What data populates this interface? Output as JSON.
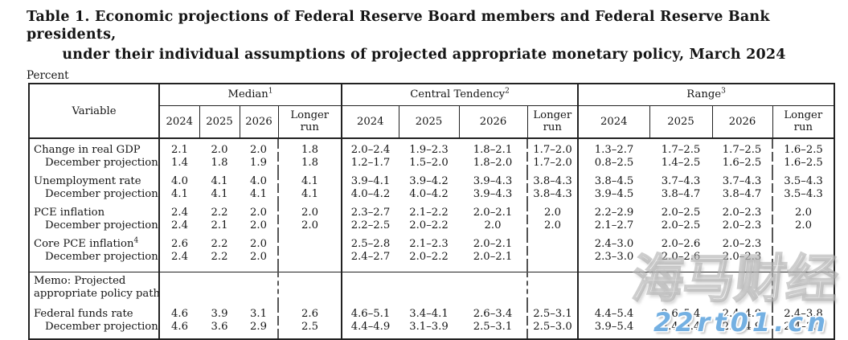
{
  "title": {
    "line1": "Table 1. Economic projections of Federal Reserve Board members and Federal Reserve Bank presidents,",
    "line2": "under their individual assumptions of projected appropriate monetary policy, March 2024"
  },
  "percent_label": "Percent",
  "table": {
    "variable_header": "Variable",
    "groups": [
      {
        "label": "Median",
        "sup": "1"
      },
      {
        "label": "Central Tendency",
        "sup": "2"
      },
      {
        "label": "Range",
        "sup": "3"
      }
    ],
    "year_headers": [
      "2024",
      "2025",
      "2026",
      "Longer run"
    ],
    "row_groups": [
      {
        "rows": [
          {
            "label": "Change in real GDP",
            "sup": "",
            "indent": false,
            "median": [
              "2.1",
              "2.0",
              "2.0",
              "1.8"
            ],
            "central_tendency": [
              "2.0–2.4",
              "1.9–2.3",
              "1.8–2.1",
              "1.7–2.0"
            ],
            "range": [
              "1.3–2.7",
              "1.7–2.5",
              "1.7–2.5",
              "1.6–2.5"
            ]
          },
          {
            "label": "December projection",
            "sup": "",
            "indent": true,
            "median": [
              "1.4",
              "1.8",
              "1.9",
              "1.8"
            ],
            "central_tendency": [
              "1.2–1.7",
              "1.5–2.0",
              "1.8–2.0",
              "1.7–2.0"
            ],
            "range": [
              "0.8–2.5",
              "1.4–2.5",
              "1.6–2.5",
              "1.6–2.5"
            ]
          }
        ]
      },
      {
        "rows": [
          {
            "label": "Unemployment rate",
            "sup": "",
            "indent": false,
            "median": [
              "4.0",
              "4.1",
              "4.0",
              "4.1"
            ],
            "central_tendency": [
              "3.9–4.1",
              "3.9–4.2",
              "3.9–4.3",
              "3.8–4.3"
            ],
            "range": [
              "3.8–4.5",
              "3.7–4.3",
              "3.7–4.3",
              "3.5–4.3"
            ]
          },
          {
            "label": "December projection",
            "sup": "",
            "indent": true,
            "median": [
              "4.1",
              "4.1",
              "4.1",
              "4.1"
            ],
            "central_tendency": [
              "4.0–4.2",
              "4.0–4.2",
              "3.9–4.3",
              "3.8–4.3"
            ],
            "range": [
              "3.9–4.5",
              "3.8–4.7",
              "3.8–4.7",
              "3.5–4.3"
            ]
          }
        ]
      },
      {
        "rows": [
          {
            "label": "PCE inflation",
            "sup": "",
            "indent": false,
            "median": [
              "2.4",
              "2.2",
              "2.0",
              "2.0"
            ],
            "central_tendency": [
              "2.3–2.7",
              "2.1–2.2",
              "2.0–2.1",
              "2.0"
            ],
            "range": [
              "2.2–2.9",
              "2.0–2.5",
              "2.0–2.3",
              "2.0"
            ]
          },
          {
            "label": "December projection",
            "sup": "",
            "indent": true,
            "median": [
              "2.4",
              "2.1",
              "2.0",
              "2.0"
            ],
            "central_tendency": [
              "2.2–2.5",
              "2.0–2.2",
              "2.0",
              "2.0"
            ],
            "range": [
              "2.1–2.7",
              "2.0–2.5",
              "2.0–2.3",
              "2.0"
            ]
          }
        ]
      },
      {
        "rows": [
          {
            "label": "Core PCE inflation",
            "sup": "4",
            "indent": false,
            "median": [
              "2.6",
              "2.2",
              "2.0",
              ""
            ],
            "central_tendency": [
              "2.5–2.8",
              "2.1–2.3",
              "2.0–2.1",
              ""
            ],
            "range": [
              "2.4–3.0",
              "2.0–2.6",
              "2.0–2.3",
              ""
            ]
          },
          {
            "label": "December projection",
            "sup": "",
            "indent": true,
            "median": [
              "2.4",
              "2.2",
              "2.0",
              ""
            ],
            "central_tendency": [
              "2.4–2.7",
              "2.0–2.2",
              "2.0–2.1",
              ""
            ],
            "range": [
              "2.3–3.0",
              "2.0–2.6",
              "2.0–2.3",
              ""
            ]
          }
        ]
      },
      {
        "memo_lines": [
          "Memo: Projected",
          "appropriate policy path"
        ]
      },
      {
        "rows": [
          {
            "label": "Federal funds rate",
            "sup": "",
            "indent": false,
            "median": [
              "4.6",
              "3.9",
              "3.1",
              "2.6"
            ],
            "central_tendency": [
              "4.6–5.1",
              "3.4–4.1",
              "2.6–3.4",
              "2.5–3.1"
            ],
            "range": [
              "4.4–5.4",
              "2.6–5.4",
              "2.4–4.9",
              "2.4–3.8"
            ]
          },
          {
            "label": "December projection",
            "sup": "",
            "indent": true,
            "median": [
              "4.6",
              "3.6",
              "2.9",
              "2.5"
            ],
            "central_tendency": [
              "4.4–4.9",
              "3.1–3.9",
              "2.5–3.1",
              "2.5–3.0"
            ],
            "range": [
              "3.9–5.4",
              "2.4–5.4",
              "2.4–4.9",
              "2.4–3.8"
            ]
          }
        ]
      }
    ]
  },
  "watermark": {
    "text_cn": "海马财经",
    "url": "22rt01.cn"
  }
}
